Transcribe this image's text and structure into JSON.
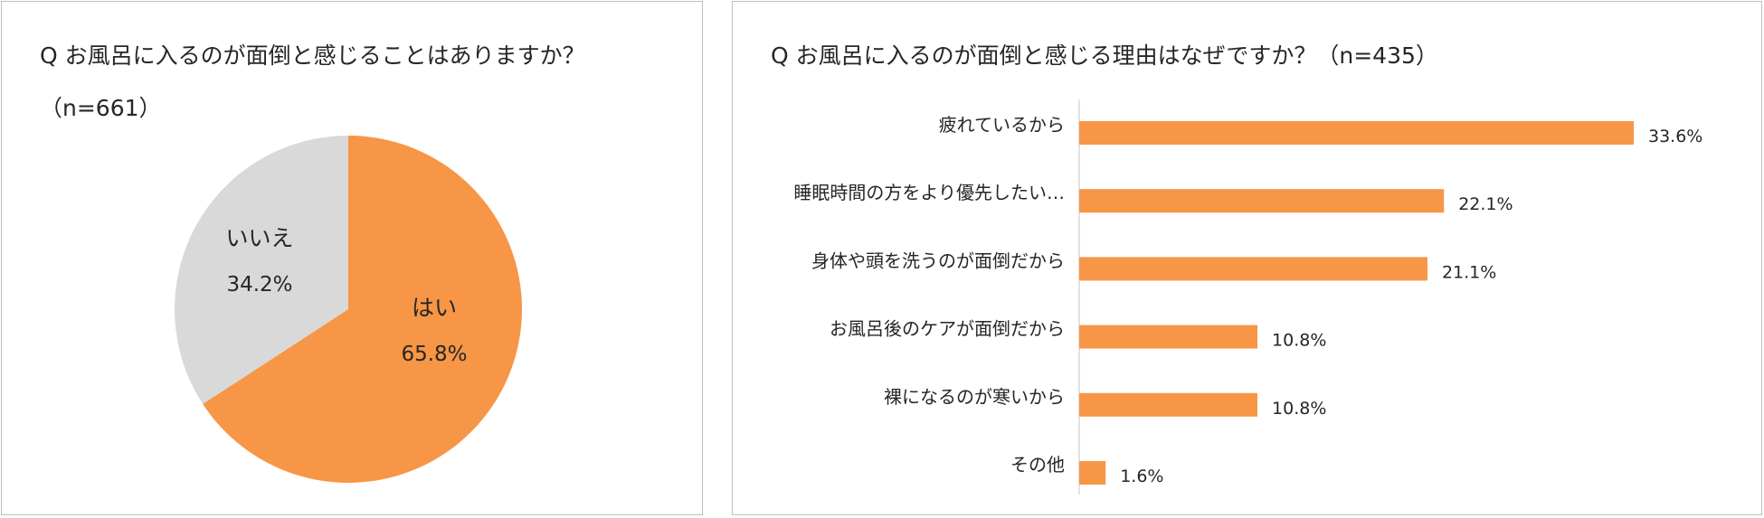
{
  "chart_data": [
    {
      "type": "pie",
      "title": "Q お風呂に入るのが面倒と感じることはありますか？",
      "subtitle": "（n=661）",
      "labels": [
        "はい",
        "いいえ"
      ],
      "values": [
        65.8,
        34.2
      ],
      "value_labels": [
        "65.8%",
        "34.2%"
      ],
      "colors": [
        "#f79646",
        "#d9d9d9"
      ]
    },
    {
      "type": "bar",
      "orientation": "horizontal",
      "title": "Q お風呂に入るのが面倒と感じる理由はなぜですか？（n=435）",
      "categories": [
        "疲れているから",
        "睡眠時間の方をより優先したい…",
        "身体や頭を洗うのが面倒だから",
        "お風呂後のケアが面倒だから",
        "裸になるのが寒いから",
        "その他"
      ],
      "values": [
        33.6,
        22.1,
        21.1,
        10.8,
        10.8,
        1.6
      ],
      "value_labels": [
        "33.6%",
        "22.1%",
        "21.1%",
        "10.8%",
        "10.8%",
        "1.6%"
      ],
      "xlim": [
        0,
        35
      ],
      "grid": false,
      "bar_color": "#f79646",
      "axis_color": "#d9d9d9"
    }
  ]
}
